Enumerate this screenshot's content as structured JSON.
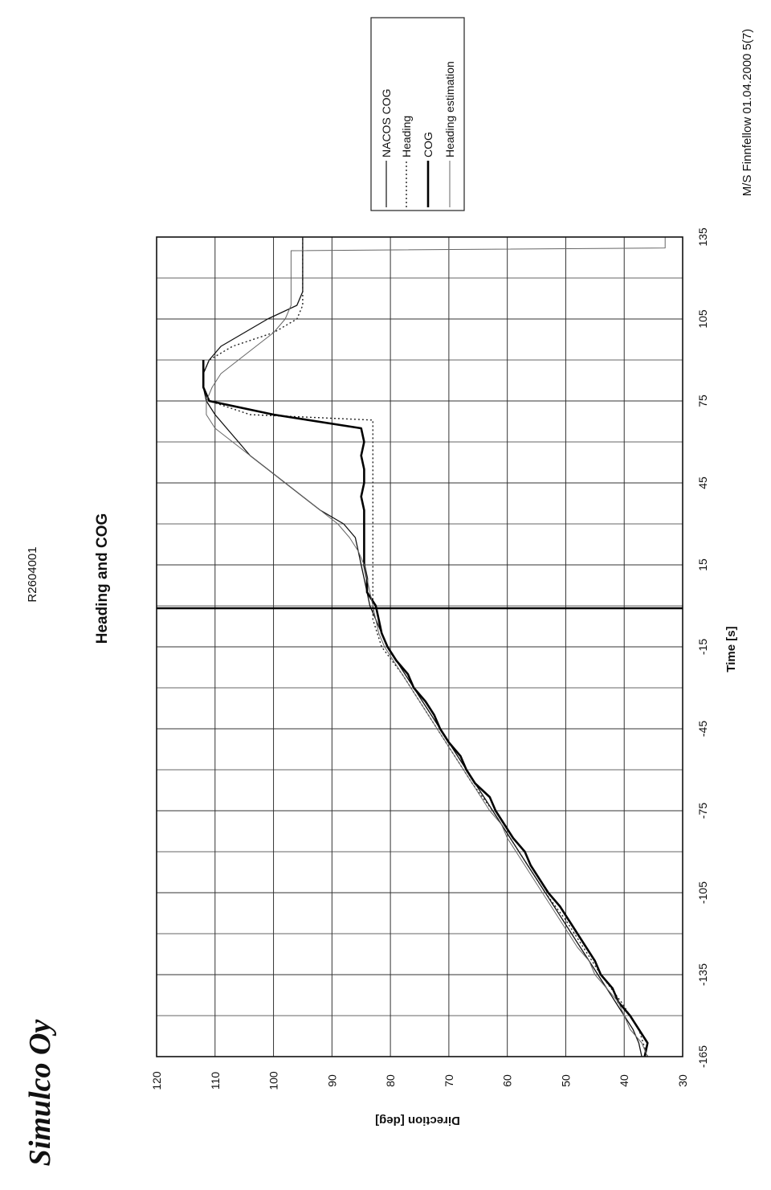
{
  "header": {
    "doc_ref": "R2604001",
    "page_info": "M/S Finnfellow 01.04.2000 5(7)",
    "brand": "Simulco Oy"
  },
  "chart_data": {
    "type": "line",
    "orientation": "rotated-90-ccw",
    "title": "Heading and COG",
    "xlabel": "Time [s]",
    "ylabel": "Direction [deg]",
    "xlim": [
      -165,
      135
    ],
    "ylim": [
      30,
      120
    ],
    "x_ticks": [
      -165,
      -135,
      -105,
      -75,
      -45,
      -15,
      15,
      45,
      75,
      105,
      135
    ],
    "y_ticks": [
      30,
      40,
      50,
      60,
      70,
      80,
      90,
      100,
      110,
      120
    ],
    "grid": true,
    "reference_line_x": 0,
    "legend_position": "top-right",
    "series": [
      {
        "name": "NACOS COG",
        "style": "solid",
        "x": [
          -165,
          -160,
          -155,
          -150,
          -145,
          -140,
          -135,
          -130,
          -125,
          -120,
          -115,
          -110,
          -105,
          -100,
          -95,
          -90,
          -85,
          -80,
          -75,
          -70,
          -65,
          -60,
          -55,
          -50,
          -45,
          -40,
          -35,
          -30,
          -25,
          -20,
          -15,
          -10,
          -5,
          0,
          5,
          10,
          15,
          20,
          25,
          30,
          35,
          40,
          45,
          50,
          55,
          60,
          65,
          70,
          75,
          80,
          85,
          90,
          95,
          100,
          105,
          110,
          115,
          120,
          125,
          130,
          135
        ],
        "values": [
          37,
          37.5,
          38.5,
          40,
          41.5,
          43,
          44.5,
          46,
          47.5,
          49,
          50.5,
          52,
          53.5,
          55,
          56.5,
          58,
          59.5,
          61,
          62.5,
          64,
          65.5,
          67,
          68.5,
          70,
          71.5,
          73,
          74.5,
          76,
          77.5,
          79,
          80.5,
          81.5,
          82.5,
          83.5,
          84,
          84.5,
          85,
          85.5,
          86,
          88,
          92,
          95,
          98,
          101,
          104,
          106,
          108,
          110,
          111.5,
          112,
          112,
          111,
          109,
          105,
          101,
          96,
          95,
          95,
          95,
          95,
          95
        ]
      },
      {
        "name": "Heading",
        "style": "dotted",
        "x": [
          -165,
          -155,
          -145,
          -135,
          -125,
          -115,
          -105,
          -95,
          -85,
          -75,
          -65,
          -55,
          -45,
          -35,
          -25,
          -15,
          -5,
          0,
          5,
          10,
          15,
          20,
          25,
          30,
          35,
          40,
          45,
          50,
          55,
          60,
          65,
          68,
          70,
          75,
          80,
          85,
          90,
          95,
          100,
          105,
          110,
          115,
          120,
          125,
          130,
          135
        ],
        "values": [
          36,
          37.5,
          40.5,
          44,
          47,
          50,
          53.5,
          56.5,
          59.5,
          62.5,
          66,
          69,
          72,
          75,
          78,
          81.5,
          83,
          83,
          83,
          83,
          83,
          83,
          83,
          83,
          83,
          83,
          83,
          83,
          83,
          83,
          83,
          83,
          104,
          111,
          112,
          112,
          111,
          107,
          100,
          96,
          95,
          95,
          95,
          95,
          95,
          95
        ]
      },
      {
        "name": "COG",
        "style": "solid-bold",
        "x": [
          -165,
          -160,
          -155,
          -150,
          -145,
          -140,
          -135,
          -130,
          -125,
          -120,
          -115,
          -110,
          -105,
          -100,
          -95,
          -90,
          -85,
          -80,
          -75,
          -70,
          -65,
          -60,
          -55,
          -50,
          -45,
          -40,
          -35,
          -30,
          -25,
          -20,
          -15,
          -10,
          -5,
          0,
          5,
          10,
          15,
          20,
          25,
          30,
          35,
          40,
          45,
          50,
          55,
          60,
          65,
          70,
          75,
          80,
          85,
          90
        ],
        "values": [
          36.5,
          36,
          37.5,
          39,
          41,
          42,
          44,
          45,
          46.5,
          48,
          49.5,
          51,
          53,
          54.5,
          56,
          57,
          59,
          60.5,
          62,
          63,
          65.5,
          67,
          68,
          70,
          71.5,
          72.5,
          74,
          76,
          77,
          79,
          80.5,
          81.5,
          82,
          82.5,
          84,
          84,
          84.5,
          84.5,
          84.5,
          84.5,
          84.5,
          85,
          84.5,
          84.5,
          85,
          84.5,
          85,
          100,
          111,
          112,
          112,
          112
        ]
      },
      {
        "name": "Heading estimation",
        "style": "solid-thin",
        "x": [
          -165,
          -160,
          -155,
          -150,
          -145,
          -140,
          -135,
          -130,
          -125,
          -120,
          -115,
          -110,
          -105,
          -100,
          -95,
          -90,
          -85,
          -80,
          -75,
          -70,
          -65,
          -60,
          -55,
          -50,
          -45,
          -40,
          -35,
          -30,
          -25,
          -20,
          -15,
          -10,
          -5,
          0,
          5,
          10,
          15,
          20,
          25,
          30,
          35,
          40,
          45,
          50,
          55,
          60,
          65,
          70,
          75,
          80,
          85,
          90,
          95,
          100,
          105,
          110,
          115,
          120,
          125,
          130,
          131,
          135
        ],
        "values": [
          36,
          37,
          39,
          40,
          41,
          43,
          45,
          46,
          48,
          49.5,
          51,
          52.5,
          54,
          55.5,
          57,
          58.5,
          60,
          61,
          63,
          64.5,
          66,
          67.5,
          69,
          70.5,
          72,
          73.5,
          75,
          76.5,
          78,
          79.5,
          81,
          82,
          82.5,
          83,
          83.5,
          84,
          84.5,
          85.5,
          87,
          89,
          92,
          95,
          98,
          101,
          104,
          107,
          110,
          111.5,
          111.5,
          110.5,
          109,
          106,
          103,
          100,
          98,
          97,
          97,
          97,
          97,
          97,
          33,
          33
        ]
      }
    ],
    "colors": {
      "axis": "#111111",
      "grid": "#333333",
      "NACOS COG": "#111111",
      "Heading": "#222222",
      "COG": "#000000",
      "Heading estimation": "#666666"
    }
  }
}
